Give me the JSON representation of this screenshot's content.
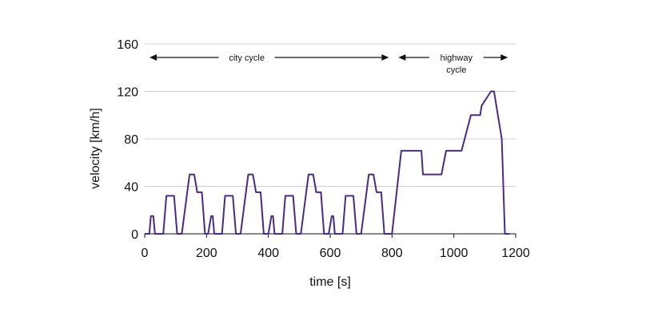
{
  "chart_data": {
    "type": "line",
    "title": "",
    "xlabel": "time [s]",
    "ylabel": "velocity [km/h]",
    "xlim": [
      0,
      1200
    ],
    "ylim": [
      0,
      160
    ],
    "x_ticks": [
      0,
      200,
      400,
      600,
      800,
      1000,
      1200
    ],
    "y_ticks": [
      0,
      40,
      80,
      120,
      160
    ],
    "x_tick_labels": [
      "0",
      "200",
      "400",
      "600",
      "800",
      "1000",
      "1200"
    ],
    "y_tick_labels": [
      "0",
      "40",
      "80",
      "120",
      "160"
    ],
    "grid": "horizontal",
    "colors": {
      "series": "#4b2a86",
      "grid": "#cfcfcf"
    },
    "annotations": {
      "city": {
        "text": "city cycle",
        "x_start": 0,
        "x_end": 800
      },
      "highway": {
        "line1": "highway",
        "line2": "cycle",
        "x_start": 800,
        "x_end": 1180
      }
    },
    "series": [
      {
        "x": [
          0,
          15,
          20,
          28,
          33,
          60,
          70,
          95,
          105,
          120,
          145,
          160,
          170,
          185,
          195,
          205,
          215,
          220,
          225,
          250,
          260,
          285,
          295,
          310,
          335,
          350,
          360,
          375,
          385,
          400,
          410,
          415,
          420,
          445,
          455,
          480,
          490,
          505,
          530,
          545,
          555,
          570,
          580,
          595,
          605,
          610,
          615,
          640,
          650,
          675,
          685,
          700,
          725,
          740,
          750,
          765,
          775,
          800,
          830,
          845,
          895,
          900,
          960,
          975,
          1025,
          1035,
          1050,
          1055,
          1085,
          1090,
          1120,
          1130,
          1155,
          1165,
          1180
        ],
        "y": [
          0,
          0,
          15,
          15,
          0,
          0,
          32,
          32,
          0,
          0,
          50,
          50,
          35,
          35,
          0,
          0,
          15,
          15,
          0,
          0,
          32,
          32,
          0,
          0,
          50,
          50,
          35,
          35,
          0,
          0,
          15,
          15,
          0,
          0,
          32,
          32,
          0,
          0,
          50,
          50,
          35,
          35,
          0,
          0,
          15,
          15,
          0,
          0,
          32,
          32,
          0,
          0,
          50,
          50,
          35,
          35,
          0,
          0,
          70,
          70,
          70,
          50,
          50,
          70,
          70,
          80,
          95,
          100,
          100,
          108,
          120,
          120,
          80,
          0,
          0
        ]
      }
    ]
  }
}
